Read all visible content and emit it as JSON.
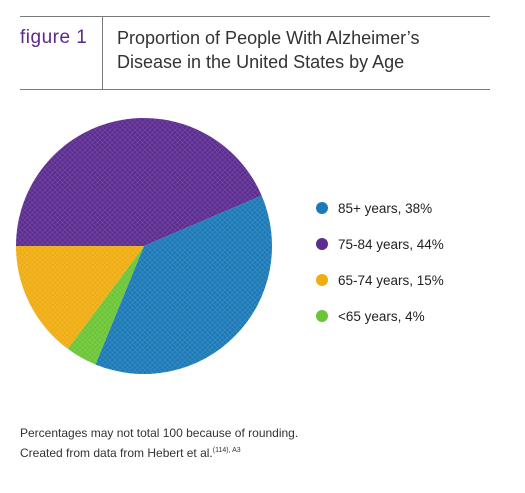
{
  "header": {
    "figure_label": "figure 1",
    "title_line1": "Proportion of People With Alzheimer’s",
    "title_line2": "Disease in the United States by Age"
  },
  "chart_data": {
    "type": "pie",
    "slices": [
      {
        "label": "85+ years, 38%",
        "value": 38,
        "color": "#1d7ab8"
      },
      {
        "label": "75-84 years, 44%",
        "value": 44,
        "color": "#5c2d91"
      },
      {
        "label": "65-74 years, 15%",
        "value": 15,
        "color": "#efad12"
      },
      {
        "label": "<65 years, 4%",
        "value": 4,
        "color": "#6cc537"
      }
    ],
    "legend_position": "right"
  },
  "footnote": {
    "line1": "Percentages may not total 100 because of rounding.",
    "line2": "Created from data from Hebert et al.",
    "line2_sup": "(114), A3"
  }
}
